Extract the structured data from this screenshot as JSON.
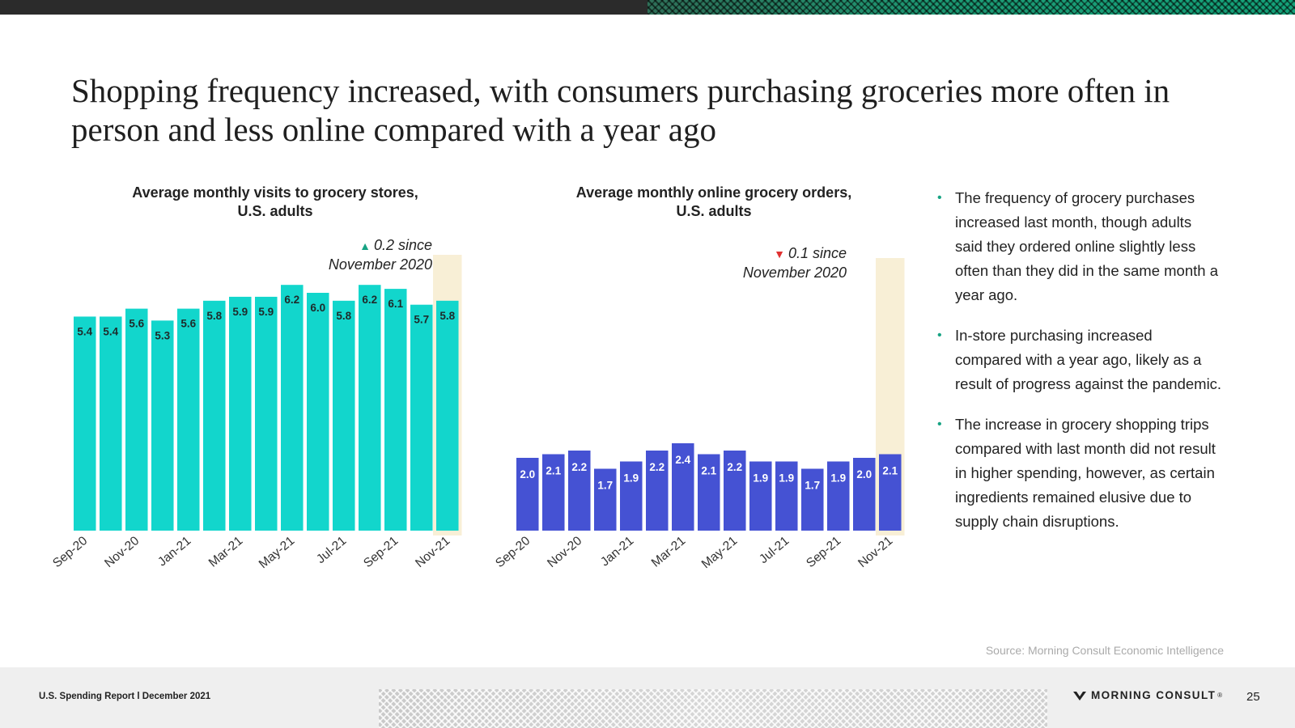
{
  "page": {
    "title": "Shopping frequency increased, with consumers purchasing groceries more often in person and less online compared with a year ago"
  },
  "colors": {
    "stores_bar": "#12d6cc",
    "online_bar": "#4552d3",
    "highlight": "#f8efd6",
    "accent_green": "#17a383",
    "accent_red": "#e03131"
  },
  "chart_data": [
    {
      "type": "bar",
      "title": "Average monthly visits to grocery stores, U.S. adults",
      "title_line1": "Average monthly visits to grocery stores,",
      "title_line2": "U.S. adults",
      "categories": [
        "Sep-20",
        "Oct-20",
        "Nov-20",
        "Dec-20",
        "Jan-21",
        "Feb-21",
        "Mar-21",
        "Apr-21",
        "May-21",
        "Jun-21",
        "Jul-21",
        "Aug-21",
        "Sep-21",
        "Oct-21",
        "Nov-21"
      ],
      "tick_labels": [
        "Sep-20",
        "Nov-20",
        "Jan-21",
        "Mar-21",
        "May-21",
        "Jul-21",
        "Sep-21",
        "Nov-21"
      ],
      "values": [
        5.4,
        5.4,
        5.6,
        5.3,
        5.6,
        5.8,
        5.9,
        5.9,
        6.2,
        6.0,
        5.8,
        6.2,
        6.1,
        5.7,
        5.8
      ],
      "value_labels": [
        "5.4",
        "5.4",
        "5.6",
        "5.3",
        "5.6",
        "5.8",
        "5.9",
        "5.9",
        "6.2",
        "6.0",
        "5.8",
        "6.2",
        "6.1",
        "5.7",
        "5.8"
      ],
      "highlight_category": "Nov-21",
      "annotation": {
        "direction": "up",
        "line1": "0.2 since",
        "line2": "November 2020"
      }
    },
    {
      "type": "bar",
      "title": "Average monthly online grocery orders, U.S. adults",
      "title_line1": "Average monthly online grocery orders,",
      "title_line2": "U.S. adults",
      "categories": [
        "Sep-20",
        "Oct-20",
        "Nov-20",
        "Dec-20",
        "Jan-21",
        "Feb-21",
        "Mar-21",
        "Apr-21",
        "May-21",
        "Jun-21",
        "Jul-21",
        "Aug-21",
        "Sep-21",
        "Oct-21",
        "Nov-21"
      ],
      "tick_labels": [
        "Sep-20",
        "Nov-20",
        "Jan-21",
        "Mar-21",
        "May-21",
        "Jul-21",
        "Sep-21",
        "Nov-21"
      ],
      "values": [
        2.0,
        2.1,
        2.2,
        1.7,
        1.9,
        2.2,
        2.4,
        2.1,
        2.2,
        1.9,
        1.9,
        1.7,
        1.9,
        2.0,
        2.1
      ],
      "value_labels": [
        "2.0",
        "2.1",
        "2.2",
        "1.7",
        "1.9",
        "2.2",
        "2.4",
        "2.1",
        "2.2",
        "1.9",
        "1.9",
        "1.7",
        "1.9",
        "2.0",
        "2.1"
      ],
      "highlight_category": "Nov-21",
      "annotation": {
        "direction": "down",
        "line1": "0.1 since",
        "line2": "November 2020"
      }
    }
  ],
  "bullets": [
    "The frequency of grocery purchases increased last month, though adults said they ordered online slightly less often than they did in the same month a year ago.",
    "In-store purchasing increased compared with a year ago, likely as a result of progress against the pandemic.",
    "The increase in grocery shopping trips compared with last month did not result in higher spending, however, as certain ingredients remained elusive due to supply chain disruptions."
  ],
  "source": "Source: Morning Consult Economic Intelligence",
  "footer": {
    "report": "U.S. Spending Report l December 2021",
    "logo_text": "MORNING CONSULT",
    "trademark": "®",
    "page_number": "25"
  }
}
